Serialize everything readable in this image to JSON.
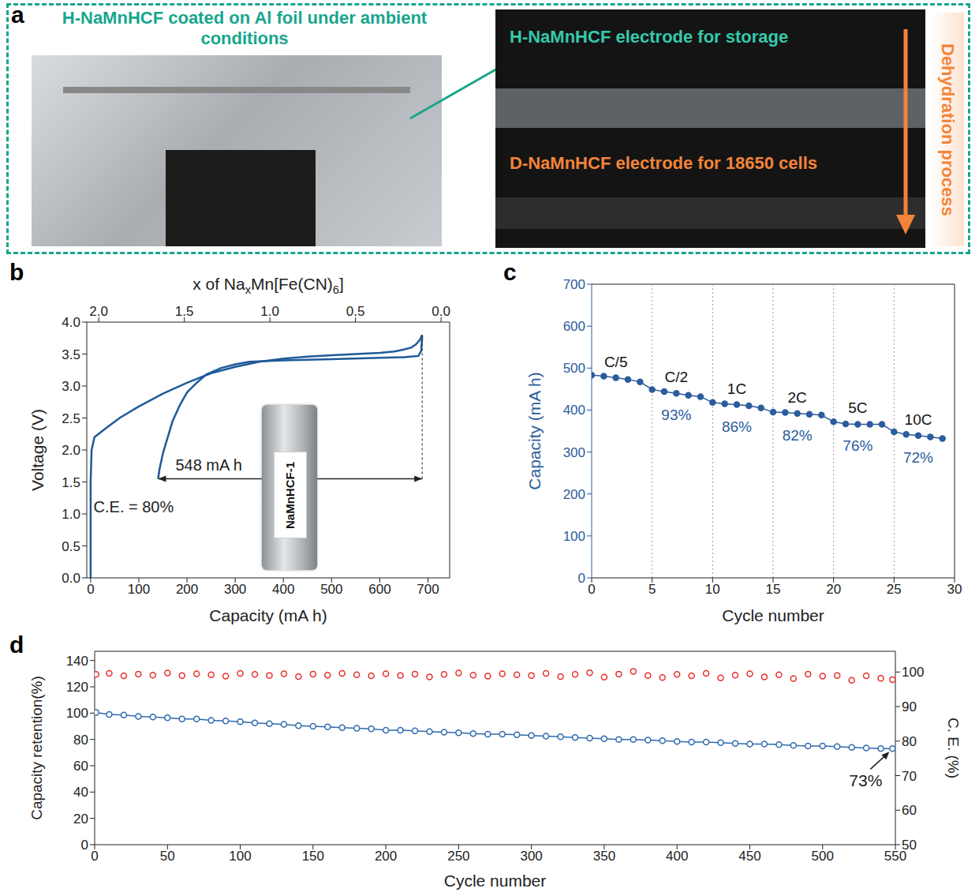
{
  "figure": {
    "panel_label": "a",
    "left_title": "H-NaMnHCF coated on Al foil under ambient conditions",
    "top_label": "H-NaMnHCF electrode for storage",
    "bottom_label": "D-NaMnHCF electrode for 18650 cells",
    "arrow_label": "Dehydration process"
  },
  "chart_data": [
    {
      "panel_label": "b",
      "type": "line",
      "xlabel": "Capacity (mA h)",
      "ylabel": "Voltage (V)",
      "x2label": [
        "x of Na",
        {
          "sub": "x"
        },
        "Mn[Fe(CN)",
        {
          "sub": "6"
        },
        "]"
      ],
      "xlim": [
        -8,
        745
      ],
      "xticks": [
        0,
        100,
        200,
        300,
        400,
        500,
        600,
        700
      ],
      "x2lim": [
        2.07,
        -0.05
      ],
      "x2ticks": [
        {
          "value": 2.0,
          "label": "2.0"
        },
        {
          "value": 1.5,
          "label": "1.5"
        },
        {
          "value": 1.0,
          "label": "1.0"
        },
        {
          "value": 0.5,
          "label": "0.5"
        },
        {
          "value": 0.0,
          "label": "0.0"
        }
      ],
      "ylim": [
        0,
        4
      ],
      "yticks": [
        {
          "value": 0,
          "label": "0.0"
        },
        {
          "value": 0.5,
          "label": "0.5"
        },
        {
          "value": 1.0,
          "label": "1.0"
        },
        {
          "value": 1.5,
          "label": "1.5"
        },
        {
          "value": 2.0,
          "label": "2.0"
        },
        {
          "value": 2.5,
          "label": "2.5"
        },
        {
          "value": 3.0,
          "label": "3.0"
        },
        {
          "value": 3.5,
          "label": "3.5"
        },
        {
          "value": 4.0,
          "label": "4.0"
        }
      ],
      "series": [
        {
          "color": "#1f5a99",
          "x": [
            0,
            0,
            2,
            8,
            30,
            60,
            100,
            150,
            200,
            250,
            300,
            350,
            400,
            450,
            500,
            550,
            600,
            630,
            650,
            665,
            675,
            683,
            688
          ],
          "values": [
            0,
            1.5,
            2.0,
            2.2,
            2.33,
            2.5,
            2.68,
            2.88,
            3.05,
            3.2,
            3.3,
            3.38,
            3.43,
            3.46,
            3.48,
            3.5,
            3.52,
            3.54,
            3.57,
            3.6,
            3.65,
            3.72,
            3.8
          ]
        },
        {
          "color": "#1f5a99",
          "x": [
            688,
            686,
            680,
            650,
            600,
            500,
            400,
            330,
            300,
            270,
            240,
            220,
            200,
            185,
            170,
            160,
            150,
            143,
            140
          ],
          "values": [
            3.78,
            3.55,
            3.47,
            3.45,
            3.44,
            3.42,
            3.4,
            3.38,
            3.34,
            3.28,
            3.18,
            3.05,
            2.9,
            2.7,
            2.45,
            2.2,
            1.95,
            1.7,
            1.55
          ]
        }
      ],
      "annotations": {
        "capacity": {
          "text": "548 mA h",
          "from": 140,
          "to": 688,
          "y": 1.55
        },
        "efficiency": "C.E. = 80%",
        "cell": "NaMnHCF-1"
      }
    },
    {
      "panel_label": "c",
      "type": "line",
      "xlabel": "Cycle number",
      "ylabel": "Capacity (mA h)",
      "xlim": [
        0,
        30
      ],
      "xticks": [
        0,
        5,
        10,
        15,
        20,
        25,
        30
      ],
      "ylim": [
        0,
        700
      ],
      "yticks": [
        0,
        100,
        200,
        300,
        400,
        500,
        600,
        700
      ],
      "color": "#2b5c9c",
      "marker": "circle",
      "x": [
        0,
        1,
        2,
        3,
        4,
        5,
        6,
        7,
        8,
        9,
        10,
        11,
        12,
        13,
        14,
        15,
        16,
        17,
        18,
        19,
        20,
        21,
        22,
        23,
        24,
        25,
        26,
        27,
        28,
        29
      ],
      "values": [
        483,
        481,
        477,
        473,
        467,
        449,
        444,
        440,
        435,
        432,
        418,
        415,
        413,
        410,
        405,
        395,
        394,
        392,
        390,
        388,
        372,
        367,
        366,
        366,
        366,
        348,
        342,
        339,
        336,
        332
      ],
      "groups": [
        {
          "name": "C/5",
          "start": 0
        },
        {
          "name": "C/2",
          "start": 5,
          "retention": {
            "value": 93,
            "label": "93%"
          }
        },
        {
          "name": "1C",
          "start": 10,
          "retention": {
            "value": 86,
            "label": "86%"
          }
        },
        {
          "name": "2C",
          "start": 15,
          "retention": {
            "value": 82,
            "label": "82%"
          }
        },
        {
          "name": "5C",
          "start": 20,
          "retention": {
            "value": 76,
            "label": "76%"
          }
        },
        {
          "name": "10C",
          "start": 25,
          "retention": {
            "value": 72,
            "label": "72%"
          }
        }
      ]
    },
    {
      "panel_label": "d",
      "type": "line",
      "xlabel": "Cycle number",
      "ylabel": "Capacity retention(%)",
      "y2label": "C. E. (%)",
      "xlim": [
        0,
        550
      ],
      "xticks": [
        0,
        50,
        100,
        150,
        200,
        250,
        300,
        350,
        400,
        450,
        500,
        550
      ],
      "ylim": [
        0,
        147
      ],
      "yticks": [
        0,
        20,
        40,
        60,
        80,
        100,
        120,
        140
      ],
      "y2lim": [
        50,
        106
      ],
      "y2ticks": [
        50,
        60,
        70,
        80,
        90,
        100
      ],
      "x": [
        1,
        10,
        20,
        30,
        40,
        50,
        60,
        70,
        80,
        90,
        100,
        110,
        120,
        130,
        140,
        150,
        160,
        170,
        180,
        190,
        200,
        210,
        220,
        230,
        240,
        250,
        260,
        270,
        280,
        290,
        300,
        310,
        320,
        330,
        340,
        350,
        360,
        370,
        380,
        390,
        400,
        410,
        420,
        430,
        440,
        450,
        460,
        470,
        480,
        490,
        500,
        510,
        520,
        530,
        540,
        548
      ],
      "series": [
        {
          "color": "#2f6bb0",
          "marker": "open_circle",
          "line_style": "solid",
          "values": [
            100.5,
            99,
            98.5,
            97.5,
            97,
            96.5,
            95.5,
            95.5,
            94.5,
            94,
            93.5,
            92.5,
            92,
            91.5,
            90.5,
            90,
            89.5,
            89,
            88.5,
            88,
            87,
            87,
            86.5,
            86,
            85.5,
            85,
            84.5,
            84,
            84,
            83.5,
            83,
            82.5,
            82,
            81.5,
            81,
            80.5,
            80,
            80,
            79.5,
            79,
            78.5,
            78,
            78,
            77.5,
            77,
            76.5,
            76.5,
            76,
            75.5,
            75,
            75,
            74.5,
            74,
            73.5,
            73,
            73
          ],
          "end_label": {
            "value": 73,
            "label": "73%"
          }
        },
        {
          "color": "#e8302a",
          "marker": "open_circle",
          "line_style": "none",
          "axis": "y2",
          "values": [
            99.3,
            99.6,
            98.9,
            99.4,
            99.1,
            99.7,
            99.0,
            99.5,
            99.2,
            98.8,
            99.6,
            99.3,
            99.0,
            99.5,
            98.7,
            99.4,
            99.1,
            99.6,
            99.2,
            98.9,
            99.5,
            99.0,
            99.4,
            98.6,
            99.3,
            99.7,
            99.1,
            98.8,
            99.5,
            99.2,
            99.0,
            99.6,
            98.7,
            99.3,
            99.8,
            98.5,
            99.4,
            100.2,
            99.0,
            98.4,
            99.3,
            98.9,
            99.6,
            98.3,
            99.1,
            99.5,
            98.6,
            99.2,
            98.1,
            99.4,
            98.8,
            99.0,
            97.6,
            98.9,
            98.2,
            97.8
          ]
        }
      ]
    }
  ]
}
